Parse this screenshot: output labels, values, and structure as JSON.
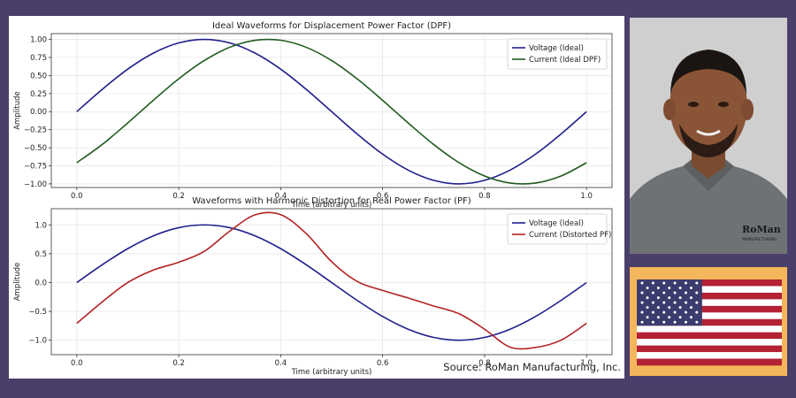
{
  "chart_data": [
    {
      "type": "line",
      "title": "Ideal Waveforms for Displacement Power Factor (DPF)",
      "xlabel": "Time (arbitrary units)",
      "ylabel": "Amplitude",
      "xlim": [
        -0.05,
        1.05
      ],
      "ylim": [
        -1.05,
        1.08
      ],
      "xticks": [
        0.0,
        0.2,
        0.4,
        0.6,
        0.8,
        1.0
      ],
      "xtick_labels": [
        "0.0",
        "0.2",
        "0.4",
        "0.6",
        "0.8",
        "1.0"
      ],
      "yticks": [
        1.0,
        0.75,
        0.5,
        0.25,
        0.0,
        -0.25,
        -0.5,
        -0.75,
        -1.0
      ],
      "ytick_labels": [
        "1.00",
        "0.75",
        "0.50",
        "0.25",
        "0.00",
        "−0.25",
        "−0.50",
        "−0.75",
        "−1.00"
      ],
      "grid": true,
      "legend_position": "top-right",
      "series": [
        {
          "name": "Voltage (Ideal)",
          "color": "#1f1f8c",
          "x": [
            0,
            0.05,
            0.1,
            0.15,
            0.2,
            0.25,
            0.3,
            0.35,
            0.4,
            0.45,
            0.5,
            0.55,
            0.6,
            0.65,
            0.7,
            0.75,
            0.8,
            0.85,
            0.9,
            0.95,
            1.0
          ],
          "y": [
            0,
            0.309,
            0.588,
            0.809,
            0.951,
            1.0,
            0.951,
            0.809,
            0.588,
            0.309,
            0,
            -0.309,
            -0.588,
            -0.809,
            -0.951,
            -1.0,
            -0.951,
            -0.809,
            -0.588,
            -0.309,
            0
          ]
        },
        {
          "name": "Current (Ideal DPF)",
          "color": "#1f5c1f",
          "x": [
            0,
            0.05,
            0.1,
            0.15,
            0.2,
            0.25,
            0.3,
            0.35,
            0.4,
            0.45,
            0.5,
            0.55,
            0.6,
            0.65,
            0.7,
            0.75,
            0.8,
            0.85,
            0.9,
            0.95,
            1.0
          ],
          "y": [
            -0.707,
            -0.454,
            -0.156,
            0.156,
            0.454,
            0.707,
            0.891,
            0.988,
            0.988,
            0.891,
            0.707,
            0.454,
            0.156,
            -0.156,
            -0.454,
            -0.707,
            -0.891,
            -0.988,
            -0.988,
            -0.891,
            -0.707
          ]
        }
      ]
    },
    {
      "type": "line",
      "title": "Waveforms with Harmonic Distortion for Real Power Factor (PF)",
      "xlabel": "Time (arbitrary units)",
      "ylabel": "Amplitude",
      "xlim": [
        -0.05,
        1.05
      ],
      "ylim": [
        -1.25,
        1.28
      ],
      "xticks": [
        0.0,
        0.2,
        0.4,
        0.6,
        0.8,
        1.0
      ],
      "xtick_labels": [
        "0.0",
        "0.2",
        "0.4",
        "0.6",
        "0.8",
        "1.0"
      ],
      "yticks": [
        1.0,
        0.5,
        0.0,
        -0.5,
        -1.0
      ],
      "ytick_labels": [
        "1.0",
        "0.5",
        "0.0",
        "−0.5",
        "−1.0"
      ],
      "grid": true,
      "legend_position": "top-right",
      "series": [
        {
          "name": "Voltage (Ideal)",
          "color": "#1f1f8c",
          "x": [
            0,
            0.05,
            0.1,
            0.15,
            0.2,
            0.25,
            0.3,
            0.35,
            0.4,
            0.45,
            0.5,
            0.55,
            0.6,
            0.65,
            0.7,
            0.75,
            0.8,
            0.85,
            0.9,
            0.95,
            1.0
          ],
          "y": [
            0,
            0.309,
            0.588,
            0.809,
            0.951,
            1.0,
            0.951,
            0.809,
            0.588,
            0.309,
            0,
            -0.309,
            -0.588,
            -0.809,
            -0.951,
            -1.0,
            -0.951,
            -0.809,
            -0.588,
            -0.309,
            0
          ]
        },
        {
          "name": "Current (Distorted PF)",
          "color": "#b22222",
          "x": [
            0,
            0.05,
            0.1,
            0.15,
            0.2,
            0.25,
            0.3,
            0.35,
            0.4,
            0.45,
            0.5,
            0.55,
            0.6,
            0.65,
            0.7,
            0.75,
            0.8,
            0.85,
            0.9,
            0.95,
            1.0
          ],
          "y": [
            -0.707,
            -0.335,
            0.0,
            0.216,
            0.352,
            0.541,
            0.891,
            1.174,
            1.177,
            0.85,
            0.361,
            0.02,
            -0.137,
            -0.267,
            -0.406,
            -0.541,
            -0.809,
            -1.119,
            -1.125,
            -0.998,
            -0.707
          ]
        }
      ]
    }
  ],
  "source_note": "Source: RoMan Manufacturing, Inc.",
  "photo": {
    "shirt_logo_text": "RoMan",
    "shirt_logo_subtext": "MANUFACTURING"
  },
  "flag": {
    "name": "us-flag",
    "stripe_red": "#b22234",
    "stripe_white": "#ffffff",
    "canton_blue": "#3c3b6e",
    "frame_color": "#f4b65b"
  },
  "background_color": "#4a3f6b"
}
